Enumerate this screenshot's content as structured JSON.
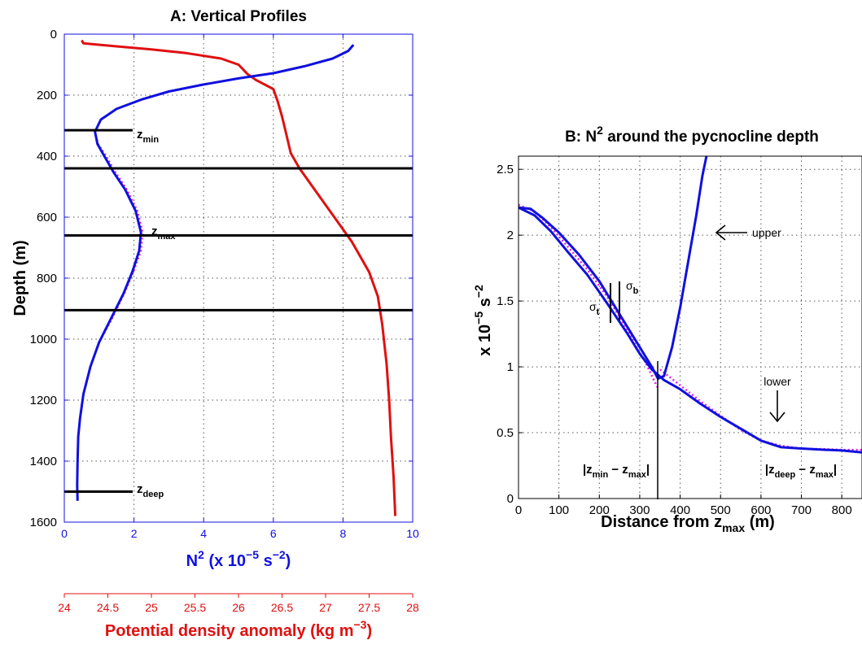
{
  "chart_data": [
    {
      "type": "line",
      "title": "A: Vertical Profiles",
      "ylabel": "Depth (m)",
      "ylim": [
        0,
        1600
      ],
      "y_reversed": true,
      "yticks": [
        "0",
        "200",
        "400",
        "600",
        "800",
        "1000",
        "1200",
        "1400",
        "1600"
      ],
      "x_primary": {
        "label_main": "N",
        "label_sup": "2",
        "label_rest": " (x 10",
        "label_exp": "−5",
        "label_unit": " s",
        "label_unit_exp": "−2",
        "label_close": ")",
        "xlim": [
          0,
          10
        ],
        "ticks": [
          "0",
          "2",
          "4",
          "6",
          "8",
          "10"
        ],
        "color": "#1010e0"
      },
      "x_secondary": {
        "label_main": "Potential density anomaly (kg m",
        "label_exp": "−3",
        "label_close": ")",
        "xlim": [
          24,
          28
        ],
        "ticks": [
          "24",
          "24.5",
          "25",
          "25.5",
          "26",
          "26.5",
          "27",
          "27.5",
          "28"
        ],
        "color": "#e01010"
      },
      "grid": true,
      "series": [
        {
          "color": "#1010e0",
          "axis": "primary",
          "points": [
            [
              8.3,
              35
            ],
            [
              8.15,
              55
            ],
            [
              7.7,
              80
            ],
            [
              6.9,
              105
            ],
            [
              6.0,
              128
            ],
            [
              5.0,
              145
            ],
            [
              4.0,
              165
            ],
            [
              3.0,
              188
            ],
            [
              2.2,
              215
            ],
            [
              1.5,
              245
            ],
            [
              1.05,
              280
            ],
            [
              0.88,
              320
            ],
            [
              0.95,
              360
            ],
            [
              1.15,
              400
            ],
            [
              1.4,
              450
            ],
            [
              1.75,
              510
            ],
            [
              2.05,
              580
            ],
            [
              2.2,
              650
            ],
            [
              2.15,
              710
            ],
            [
              1.95,
              780
            ],
            [
              1.7,
              850
            ],
            [
              1.35,
              930
            ],
            [
              1.0,
              1010
            ],
            [
              0.75,
              1090
            ],
            [
              0.55,
              1180
            ],
            [
              0.45,
              1260
            ],
            [
              0.4,
              1320
            ],
            [
              0.38,
              1400
            ],
            [
              0.37,
              1480
            ],
            [
              0.38,
              1530
            ]
          ]
        },
        {
          "color": "#e0e020",
          "axis": "primary",
          "dashed": true,
          "stroke": "#e020e0",
          "points": [
            [
              0.88,
              320
            ],
            [
              0.97,
              360
            ],
            [
              1.2,
              400
            ],
            [
              1.45,
              450
            ],
            [
              1.8,
              510
            ],
            [
              2.1,
              580
            ],
            [
              2.25,
              650
            ],
            [
              2.2,
              710
            ],
            [
              1.98,
              780
            ],
            [
              1.72,
              850
            ],
            [
              1.38,
              930
            ],
            [
              1.0,
              1010
            ],
            [
              0.75,
              1090
            ],
            [
              0.55,
              1180
            ],
            [
              0.45,
              1260
            ],
            [
              0.4,
              1320
            ],
            [
              0.38,
              1400
            ],
            [
              0.37,
              1480
            ],
            [
              0.38,
              1530
            ]
          ]
        },
        {
          "color": "#e01010",
          "axis": "secondary",
          "points": [
            [
              24.2,
              20
            ],
            [
              24.22,
              30
            ],
            [
              24.6,
              40
            ],
            [
              25.0,
              50
            ],
            [
              25.4,
              62
            ],
            [
              25.8,
              80
            ],
            [
              26.0,
              100
            ],
            [
              26.05,
              115
            ],
            [
              26.1,
              130
            ],
            [
              26.2,
              150
            ],
            [
              26.4,
              180
            ],
            [
              26.45,
              220
            ],
            [
              26.5,
              270
            ],
            [
              26.55,
              330
            ],
            [
              26.6,
              390
            ],
            [
              26.7,
              440
            ],
            [
              26.9,
              520
            ],
            [
              27.1,
              600
            ],
            [
              27.3,
              680
            ],
            [
              27.5,
              780
            ],
            [
              27.6,
              860
            ],
            [
              27.65,
              950
            ],
            [
              27.7,
              1080
            ],
            [
              27.73,
              1200
            ],
            [
              27.75,
              1320
            ],
            [
              27.78,
              1450
            ],
            [
              27.8,
              1580
            ]
          ]
        }
      ],
      "hlines": [
        315,
        440,
        660,
        905,
        1500
      ],
      "annotations": [
        {
          "text": "z",
          "sub": "min"
        },
        {
          "text": "z",
          "sub": "max"
        },
        {
          "text": "z",
          "sub": "deep"
        }
      ]
    },
    {
      "type": "line",
      "title_main": "B: N",
      "title_sup": "2",
      "title_rest": " around the pycnocline depth",
      "xlabel_main": "Distance from z",
      "xlabel_sub": "max",
      "xlabel_rest": " (m)",
      "ylabel_main": "x 10",
      "ylabel_exp": "−5",
      "ylabel_unit": " s",
      "ylabel_unit_exp": "−2",
      "xlim": [
        0,
        850
      ],
      "ylim": [
        0,
        2.6
      ],
      "xticks": [
        "0",
        "100",
        "200",
        "300",
        "400",
        "500",
        "600",
        "700",
        "800"
      ],
      "yticks": [
        "0",
        "0.5",
        "1",
        "1.5",
        "2",
        "2.5"
      ],
      "grid": true,
      "series": [
        {
          "color": "#1010e0",
          "points": [
            [
              0,
              2.21
            ],
            [
              30,
              2.2
            ],
            [
              60,
              2.13
            ],
            [
              100,
              2.02
            ],
            [
              150,
              1.85
            ],
            [
              200,
              1.65
            ],
            [
              250,
              1.4
            ],
            [
              300,
              1.15
            ],
            [
              330,
              1.0
            ],
            [
              345,
              0.91
            ],
            [
              360,
              0.93
            ],
            [
              380,
              1.15
            ],
            [
              400,
              1.45
            ],
            [
              420,
              1.8
            ],
            [
              440,
              2.15
            ],
            [
              455,
              2.45
            ],
            [
              465,
              2.6
            ]
          ]
        },
        {
          "color": "#1010e0",
          "points": [
            [
              0,
              2.21
            ],
            [
              40,
              2.15
            ],
            [
              80,
              2.03
            ],
            [
              120,
              1.88
            ],
            [
              170,
              1.7
            ],
            [
              220,
              1.48
            ],
            [
              270,
              1.25
            ],
            [
              300,
              1.1
            ],
            [
              330,
              0.98
            ],
            [
              360,
              0.9
            ],
            [
              400,
              0.83
            ],
            [
              450,
              0.72
            ],
            [
              500,
              0.62
            ],
            [
              550,
              0.53
            ],
            [
              600,
              0.44
            ],
            [
              650,
              0.39
            ],
            [
              700,
              0.38
            ],
            [
              760,
              0.37
            ],
            [
              800,
              0.365
            ],
            [
              850,
              0.35
            ]
          ]
        },
        {
          "color": "#e020e0",
          "dashed": true,
          "points": [
            [
              0,
              2.23
            ],
            [
              40,
              2.18
            ],
            [
              80,
              2.06
            ],
            [
              120,
              1.92
            ],
            [
              170,
              1.74
            ],
            [
              220,
              1.53
            ],
            [
              260,
              1.33
            ],
            [
              290,
              1.16
            ],
            [
              315,
              1.03
            ],
            [
              335,
              0.9
            ],
            [
              345,
              0.84
            ]
          ]
        },
        {
          "color": "#e020e0",
          "dashed": true,
          "points": [
            [
              350,
              0.98
            ],
            [
              400,
              0.86
            ],
            [
              450,
              0.74
            ],
            [
              500,
              0.63
            ],
            [
              550,
              0.52
            ],
            [
              600,
              0.44
            ],
            [
              650,
              0.4
            ],
            [
              700,
              0.38
            ],
            [
              760,
              0.375
            ],
            [
              800,
              0.37
            ],
            [
              850,
              0.37
            ]
          ]
        }
      ],
      "annotations": [
        {
          "text": "upper"
        },
        {
          "text": "lower"
        },
        {
          "text": "σ",
          "sub": "b"
        },
        {
          "text": "σ",
          "sub": "t"
        },
        {
          "text": "|z",
          "sub": "min",
          "mid": " − z",
          "sub2": "max",
          "end": "|"
        },
        {
          "text": "|z",
          "sub": "deep",
          "mid": " − z",
          "sub2": "max",
          "end": "|"
        }
      ]
    }
  ]
}
